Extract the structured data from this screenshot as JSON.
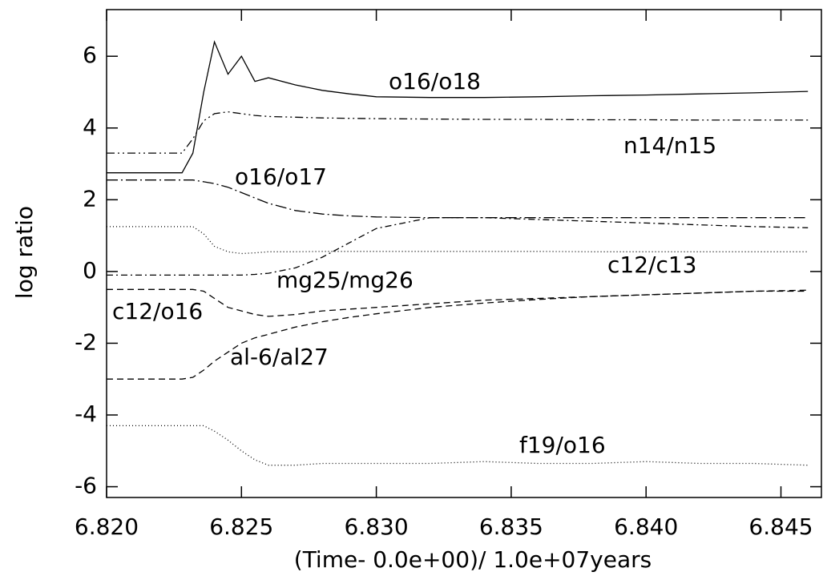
{
  "chart_data": {
    "type": "line",
    "xlabel": "(Time- 0.0e+00)/ 1.0e+07years",
    "ylabel": "log ratio",
    "xlim": [
      6.82,
      6.8465
    ],
    "ylim": [
      -6.3,
      7.3
    ],
    "xticks": [
      {
        "value": 6.82,
        "label": "6.820"
      },
      {
        "value": 6.825,
        "label": "6.825"
      },
      {
        "value": 6.83,
        "label": "6.830"
      },
      {
        "value": 6.835,
        "label": "6.835"
      },
      {
        "value": 6.84,
        "label": "6.840"
      },
      {
        "value": 6.845,
        "label": "6.845"
      }
    ],
    "yticks": [
      -6,
      -4,
      -2,
      0,
      2,
      4,
      6
    ],
    "x": [
      6.82,
      6.821,
      6.822,
      6.8228,
      6.8232,
      6.8236,
      6.824,
      6.8245,
      6.825,
      6.8255,
      6.826,
      6.827,
      6.828,
      6.829,
      6.83,
      6.832,
      6.834,
      6.836,
      6.838,
      6.84,
      6.842,
      6.844,
      6.846
    ],
    "series": [
      {
        "name": "o16/o18",
        "color": "#000000",
        "dash": "none",
        "values": [
          2.75,
          2.75,
          2.75,
          2.75,
          3.3,
          5.0,
          6.4,
          5.5,
          6.0,
          5.3,
          5.4,
          5.2,
          5.05,
          4.95,
          4.87,
          4.85,
          4.85,
          4.87,
          4.9,
          4.92,
          4.95,
          4.98,
          5.02
        ]
      },
      {
        "name": "n14/n15",
        "color": "#000000",
        "dash": "10 4 2 4 2 4",
        "values": [
          3.3,
          3.3,
          3.3,
          3.3,
          3.7,
          4.2,
          4.4,
          4.45,
          4.4,
          4.35,
          4.32,
          4.3,
          4.28,
          4.27,
          4.26,
          4.25,
          4.24,
          4.24,
          4.23,
          4.23,
          4.22,
          4.22,
          4.22
        ]
      },
      {
        "name": "o16/o17",
        "color": "#000000",
        "dash": "14 4 2 4",
        "values": [
          2.55,
          2.55,
          2.55,
          2.55,
          2.55,
          2.5,
          2.45,
          2.35,
          2.2,
          2.05,
          1.9,
          1.7,
          1.6,
          1.55,
          1.52,
          1.5,
          1.5,
          1.5,
          1.5,
          1.5,
          1.5,
          1.5,
          1.5
        ]
      },
      {
        "name": "c12/c13",
        "color": "#000000",
        "dash": "1 3",
        "values": [
          1.25,
          1.25,
          1.25,
          1.25,
          1.25,
          1.05,
          0.7,
          0.55,
          0.5,
          0.52,
          0.55,
          0.55,
          0.56,
          0.56,
          0.56,
          0.56,
          0.56,
          0.56,
          0.55,
          0.55,
          0.55,
          0.55,
          0.55
        ]
      },
      {
        "name": "mg25/mg26",
        "color": "#000000",
        "dash": "8 4 2 4",
        "values": [
          -0.1,
          -0.1,
          -0.1,
          -0.1,
          -0.1,
          -0.1,
          -0.1,
          -0.1,
          -0.1,
          -0.08,
          -0.05,
          0.1,
          0.4,
          0.8,
          1.2,
          1.5,
          1.5,
          1.45,
          1.4,
          1.35,
          1.3,
          1.25,
          1.22
        ]
      },
      {
        "name": "c12/o16",
        "color": "#000000",
        "dash": "8 5",
        "values": [
          -0.5,
          -0.5,
          -0.5,
          -0.5,
          -0.5,
          -0.55,
          -0.75,
          -1.0,
          -1.1,
          -1.2,
          -1.25,
          -1.2,
          -1.1,
          -1.05,
          -1.0,
          -0.9,
          -0.8,
          -0.75,
          -0.7,
          -0.65,
          -0.6,
          -0.55,
          -0.55
        ]
      },
      {
        "name": "al-6/al27",
        "color": "#000000",
        "dash": "8 5",
        "values": [
          -3.0,
          -3.0,
          -3.0,
          -3.0,
          -2.95,
          -2.75,
          -2.5,
          -2.25,
          -2.0,
          -1.85,
          -1.75,
          -1.55,
          -1.4,
          -1.28,
          -1.18,
          -1.0,
          -0.88,
          -0.78,
          -0.7,
          -0.65,
          -0.6,
          -0.55,
          -0.52
        ]
      },
      {
        "name": "f19/o16",
        "color": "#000000",
        "dash": "1 3",
        "values": [
          -4.3,
          -4.3,
          -4.3,
          -4.3,
          -4.3,
          -4.3,
          -4.45,
          -4.7,
          -5.0,
          -5.25,
          -5.4,
          -5.4,
          -5.35,
          -5.35,
          -5.35,
          -5.35,
          -5.3,
          -5.35,
          -5.35,
          -5.3,
          -5.35,
          -5.35,
          -5.4
        ]
      }
    ]
  }
}
